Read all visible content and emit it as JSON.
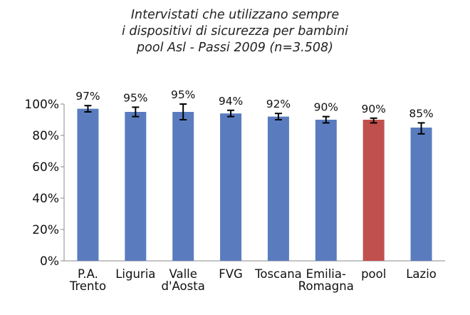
{
  "chart_data": {
    "type": "bar",
    "title_lines": [
      "Intervistati che utilizzano sempre",
      "i dispositivi di sicurezza per bambini",
      "pool Asl - Passi 2009 (n=3.508)"
    ],
    "categories": [
      [
        "P.A.",
        "Trento"
      ],
      [
        "Liguria"
      ],
      [
        "Valle",
        "d'Aosta"
      ],
      [
        "FVG"
      ],
      [
        "Toscana"
      ],
      [
        "Emilia-",
        "Romagna"
      ],
      [
        "pool"
      ],
      [
        "Lazio"
      ]
    ],
    "values": [
      97,
      95,
      95,
      94,
      92,
      90,
      90,
      85
    ],
    "value_labels": [
      "97%",
      "95%",
      "95%",
      "94%",
      "92%",
      "90%",
      "90%",
      "85%"
    ],
    "error_low": [
      95,
      92,
      90,
      92,
      90,
      88,
      88,
      81
    ],
    "error_high": [
      99,
      98,
      100,
      96,
      94,
      92,
      91,
      88
    ],
    "bar_colors": [
      "#5a7cbf",
      "#5a7cbf",
      "#5a7cbf",
      "#5a7cbf",
      "#5a7cbf",
      "#5a7cbf",
      "#c0504d",
      "#5a7cbf"
    ],
    "ylim": [
      0,
      100
    ],
    "yticks": [
      0,
      20,
      40,
      60,
      80,
      100
    ],
    "ytick_labels": [
      "0%",
      "20%",
      "40%",
      "60%",
      "80%",
      "100%"
    ],
    "grid": false,
    "xlabel": "",
    "ylabel": ""
  }
}
